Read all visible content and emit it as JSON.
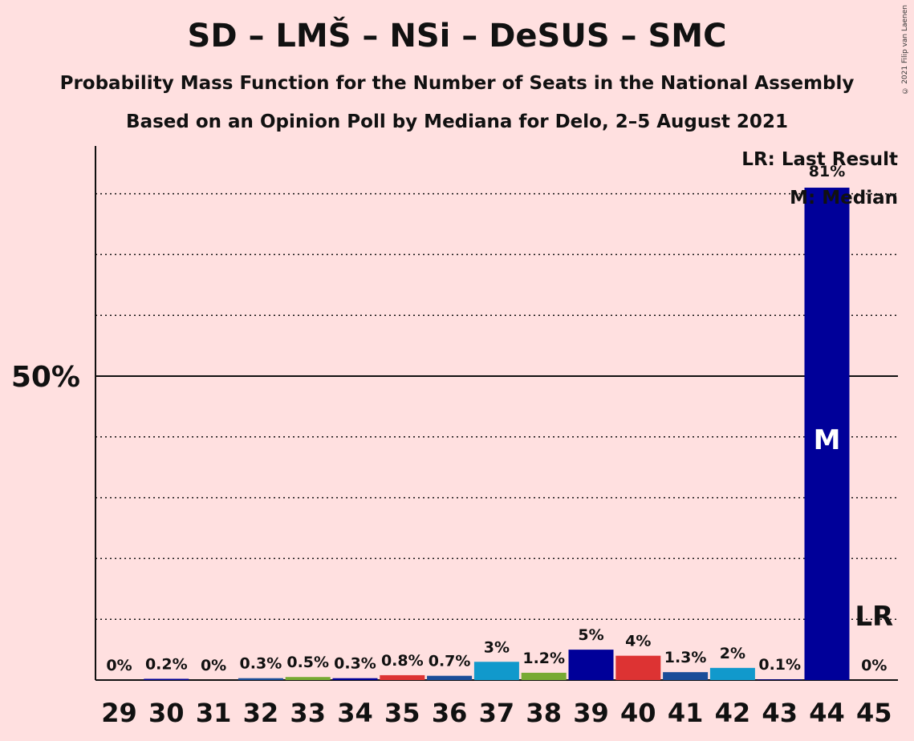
{
  "title": "SD – LMŠ – NSi – DeSUS – SMC",
  "subtitle": "Probability Mass Function for the Number of Seats in the National Assembly",
  "subtitle2": "Based on an Opinion Poll by Mediana for Delo, 2–5 August 2021",
  "copyright": "© 2021 Filip van Laenen",
  "legend": {
    "lr": "LR: Last Result",
    "m": "M: Median"
  },
  "chart_data": {
    "type": "bar",
    "categories": [
      "29",
      "30",
      "31",
      "32",
      "33",
      "34",
      "35",
      "36",
      "37",
      "38",
      "39",
      "40",
      "41",
      "42",
      "43",
      "44",
      "45"
    ],
    "values": [
      0,
      0.2,
      0,
      0.3,
      0.5,
      0.3,
      0.8,
      0.7,
      3,
      1.2,
      5,
      4,
      1.3,
      2,
      0.1,
      81,
      0
    ],
    "labels": [
      "0%",
      "0.2%",
      "0%",
      "0.3%",
      "0.5%",
      "0.3%",
      "0.8%",
      "0.7%",
      "3%",
      "1.2%",
      "5%",
      "4%",
      "1.3%",
      "2%",
      "0.1%",
      "81%",
      "0%"
    ],
    "colors": [
      "#000099",
      "#000099",
      "#000099",
      "#1a4d99",
      "#77aa33",
      "#000099",
      "#dd3333",
      "#1a4d99",
      "#1199cc",
      "#77aa33",
      "#000099",
      "#dd3333",
      "#1a4d99",
      "#1199cc",
      "#000099",
      "#000099",
      "#000099"
    ],
    "ylabel_50": "50%",
    "ylim": [
      0,
      88
    ],
    "gridlines": [
      10,
      20,
      30,
      40,
      60,
      70,
      80
    ],
    "median_seat": "44",
    "median_marker": "M",
    "last_result_seat": "45",
    "last_result_marker": "LR"
  }
}
